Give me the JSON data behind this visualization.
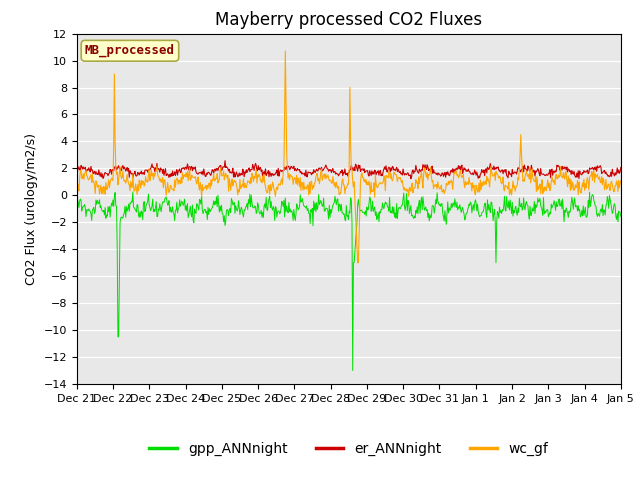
{
  "title": "Mayberry processed CO2 Fluxes",
  "ylabel": "CO2 Flux (urology/m2/s)",
  "ylim": [
    -14,
    12
  ],
  "yticks": [
    -14,
    -12,
    -10,
    -8,
    -6,
    -4,
    -2,
    0,
    2,
    4,
    6,
    8,
    10,
    12
  ],
  "xtick_labels": [
    "Dec 21",
    "Dec 22",
    "Dec 23",
    "Dec 24",
    "Dec 25",
    "Dec 26",
    "Dec 27",
    "Dec 28",
    "Dec 29",
    "Dec 30",
    "Dec 31",
    "Jan 1",
    "Jan 2",
    "Jan 3",
    "Jan 4",
    "Jan 5"
  ],
  "legend_label": "MB_processed",
  "legend_text_color": "#8B0000",
  "legend_bg_color": "#FFFFCC",
  "legend_edge_color": "#AAAA44",
  "line_colors": {
    "gpp": "#00DD00",
    "er": "#CC0000",
    "wc": "#FFA500"
  },
  "line_labels": [
    "gpp_ANNnight",
    "er_ANNnight",
    "wc_gf"
  ],
  "bg_color": "#E8E8E8",
  "title_fontsize": 12,
  "axis_fontsize": 9,
  "tick_fontsize": 8,
  "legend_fontsize": 10,
  "seed": 42
}
